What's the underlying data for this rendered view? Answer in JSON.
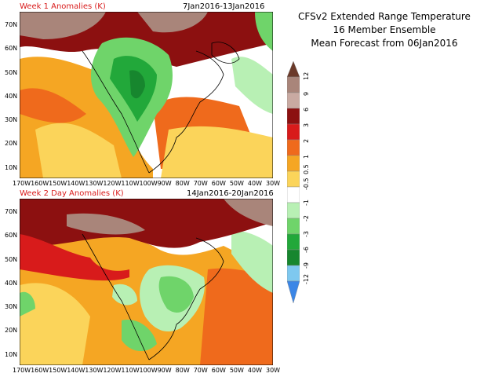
{
  "header": {
    "line1": "CFSv2 Extended Range Temperature",
    "line2": "16 Member Ensemble",
    "line3": "Mean Forecast from 06Jan2016"
  },
  "panels": [
    {
      "title": "Week 1 Anomalies (K)",
      "dates": "7Jan2016-13Jan2016"
    },
    {
      "title": "Week 2 Day Anomalies (K)",
      "dates": "14Jan2016-20Jan2016"
    }
  ],
  "lat_labels": [
    "70N",
    "60N",
    "50N",
    "40N",
    "30N",
    "20N",
    "10N"
  ],
  "lon_labels": [
    "170W",
    "160W",
    "150W",
    "140W",
    "130W",
    "120W",
    "110W",
    "100W",
    "90W",
    "80W",
    "70W",
    "60W",
    "50W",
    "40W",
    "30W"
  ],
  "colorbar": {
    "labels": [
      "12",
      "9",
      "6",
      "3",
      "2",
      "1",
      "0.5",
      "-0.5",
      "-1",
      "-2",
      "-3",
      "-6",
      "-9",
      "-12"
    ],
    "colors": [
      "#6b3a2a",
      "#a9857a",
      "#c9aaa2",
      "#8c1010",
      "#d81b1b",
      "#ef6a1c",
      "#f5a623",
      "#fbd45a",
      "#ffffff",
      "#b8f0b4",
      "#6fd46a",
      "#22a83a",
      "#17862e",
      "#7ec8ef",
      "#3b86e6"
    ]
  }
}
